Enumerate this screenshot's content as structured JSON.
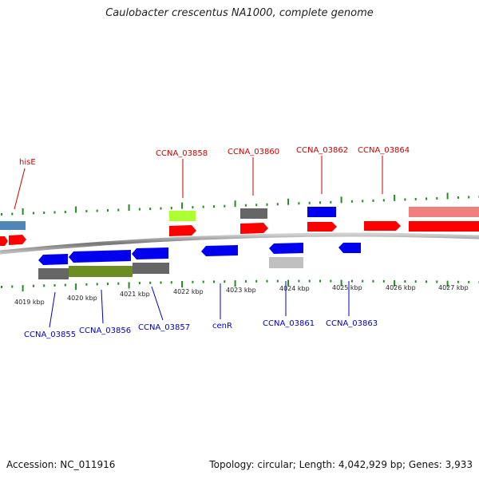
{
  "title": "Caulobacter crescentus NA1000, complete genome",
  "footer": {
    "accession": "Accession: NC_011916",
    "summary": "Topology: circular; Length: 4,042,929 bp; Genes: 3,933"
  },
  "colors": {
    "forward_gene": "#ff0000",
    "reverse_gene": "#0000ee",
    "forward_label": "#cc0000",
    "reverse_label": "#0000bb",
    "tick": "#228b22",
    "backbone": "#888888"
  },
  "scale_labels": [
    "4019 kbp",
    "4020 kbp",
    "4021 kbp",
    "4022 kbp",
    "4023 kbp",
    "4024 kbp",
    "4025 kbp",
    "4026 kbp",
    "4027 kbp"
  ],
  "top_labels": [
    "hisE",
    "CCNA_03858",
    "CCNA_03860",
    "CCNA_03862",
    "CCNA_03864"
  ],
  "bottom_labels": [
    "CCNA_03855",
    "CCNA_03856",
    "CCNA_03857",
    "cenR",
    "CCNA_03861",
    "CCNA_03863"
  ]
}
